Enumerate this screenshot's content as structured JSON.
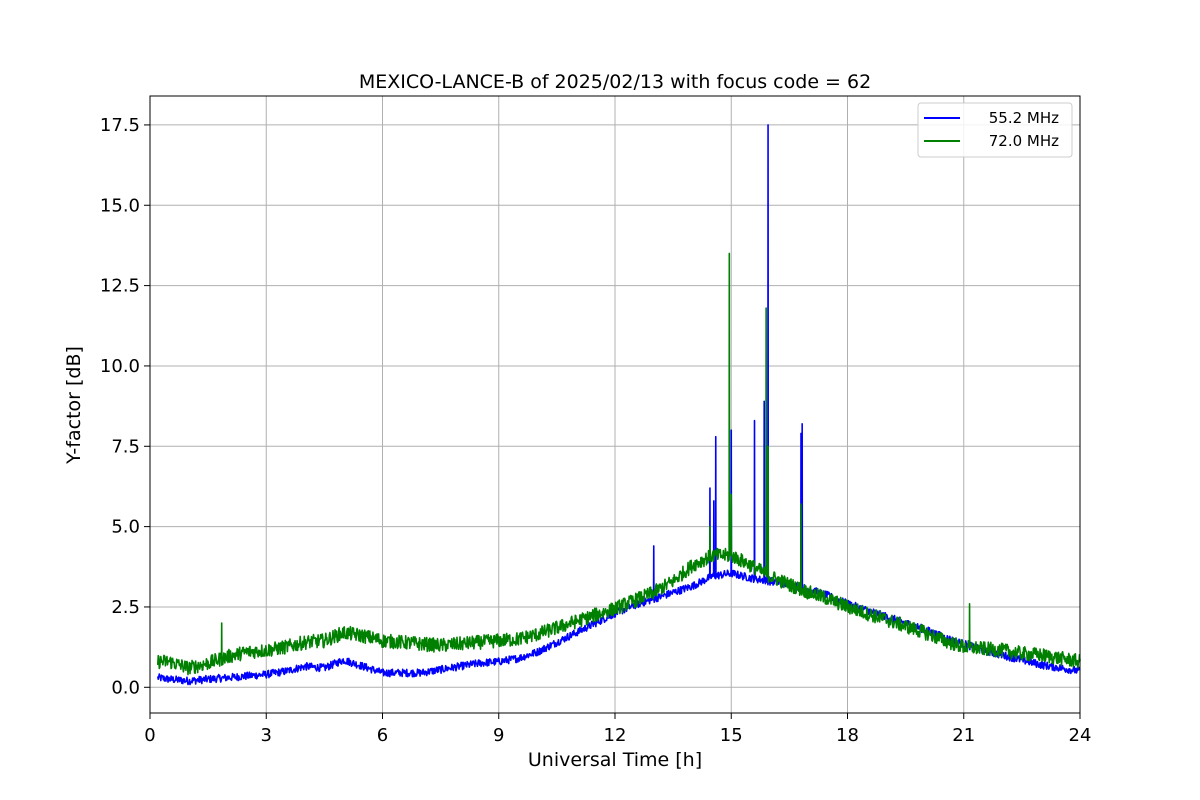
{
  "chart_data": {
    "type": "line",
    "title": "MEXICO-LANCE-B of 2025/02/13 with focus code = 62",
    "xlabel": "Universal Time [h]",
    "ylabel": "Y-factor [dB]",
    "xlim": [
      0,
      24
    ],
    "ylim": [
      -0.8,
      18.4
    ],
    "xticks": [
      0,
      3,
      6,
      9,
      12,
      15,
      18,
      21,
      24
    ],
    "yticks": [
      0.0,
      2.5,
      5.0,
      7.5,
      10.0,
      12.5,
      15.0,
      17.5
    ],
    "xtick_labels": [
      "0",
      "3",
      "6",
      "9",
      "12",
      "15",
      "18",
      "21",
      "24"
    ],
    "ytick_labels": [
      "0.0",
      "2.5",
      "5.0",
      "7.5",
      "10.0",
      "12.5",
      "15.0",
      "17.5"
    ],
    "grid": true,
    "legend_position": "top-right",
    "series": [
      {
        "name": "55.2 MHz",
        "color": "#0000ff",
        "x": [
          0.2,
          0.5,
          1.0,
          1.5,
          2.0,
          2.5,
          3.0,
          3.5,
          4.0,
          4.5,
          5.0,
          5.5,
          6.0,
          6.5,
          7.0,
          7.5,
          8.0,
          8.5,
          9.0,
          9.5,
          10.0,
          10.5,
          11.0,
          11.5,
          12.0,
          12.5,
          13.0,
          13.5,
          14.0,
          14.5,
          15.0,
          15.5,
          16.0,
          16.5,
          17.0,
          17.5,
          18.0,
          18.5,
          19.0,
          19.5,
          20.0,
          20.5,
          21.0,
          21.5,
          22.0,
          22.5,
          23.0,
          23.5,
          24.0
        ],
        "y": [
          0.3,
          0.25,
          0.2,
          0.25,
          0.3,
          0.35,
          0.4,
          0.5,
          0.65,
          0.6,
          0.85,
          0.65,
          0.45,
          0.45,
          0.45,
          0.55,
          0.65,
          0.75,
          0.8,
          0.9,
          1.1,
          1.4,
          1.7,
          2.0,
          2.3,
          2.55,
          2.75,
          2.95,
          3.15,
          3.45,
          3.55,
          3.4,
          3.3,
          3.2,
          3.05,
          2.85,
          2.6,
          2.4,
          2.2,
          2.0,
          1.8,
          1.55,
          1.35,
          1.15,
          1.0,
          0.85,
          0.7,
          0.6,
          0.5
        ],
        "noise": 0.12,
        "spikes": [
          [
            13.0,
            4.4
          ],
          [
            14.45,
            6.2
          ],
          [
            14.55,
            5.8
          ],
          [
            14.6,
            7.8
          ],
          [
            15.0,
            8.0
          ],
          [
            15.6,
            8.3
          ],
          [
            15.85,
            8.9
          ],
          [
            15.95,
            17.5
          ],
          [
            16.8,
            7.9
          ],
          [
            16.83,
            8.2
          ]
        ]
      },
      {
        "name": "72.0 MHz",
        "color": "#008000",
        "x": [
          0.2,
          0.5,
          1.0,
          1.5,
          2.0,
          2.5,
          3.0,
          3.5,
          4.0,
          4.5,
          5.0,
          5.5,
          6.0,
          6.5,
          7.0,
          7.5,
          8.0,
          8.5,
          9.0,
          9.5,
          10.0,
          10.5,
          11.0,
          11.5,
          12.0,
          12.5,
          13.0,
          13.5,
          14.0,
          14.5,
          15.0,
          15.5,
          16.0,
          16.5,
          17.0,
          17.5,
          18.0,
          18.5,
          19.0,
          19.5,
          20.0,
          20.5,
          21.0,
          21.5,
          22.0,
          22.5,
          23.0,
          23.5,
          24.0
        ],
        "y": [
          0.8,
          0.8,
          0.6,
          0.75,
          0.95,
          1.1,
          1.15,
          1.25,
          1.4,
          1.45,
          1.7,
          1.6,
          1.45,
          1.4,
          1.35,
          1.3,
          1.35,
          1.4,
          1.45,
          1.5,
          1.65,
          1.85,
          2.05,
          2.25,
          2.45,
          2.7,
          2.95,
          3.3,
          3.8,
          4.1,
          4.1,
          3.8,
          3.45,
          3.2,
          2.95,
          2.75,
          2.5,
          2.3,
          2.1,
          1.9,
          1.7,
          1.45,
          1.25,
          1.2,
          1.15,
          1.05,
          1.0,
          0.9,
          0.8
        ],
        "noise": 0.22,
        "spikes": [
          [
            1.85,
            2.0
          ],
          [
            14.45,
            5.0
          ],
          [
            14.95,
            13.5
          ],
          [
            15.0,
            6.0
          ],
          [
            15.9,
            11.8
          ],
          [
            15.95,
            7.5
          ],
          [
            16.8,
            5.7
          ],
          [
            21.15,
            2.6
          ]
        ]
      }
    ]
  }
}
